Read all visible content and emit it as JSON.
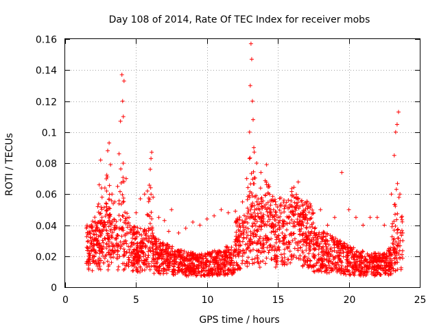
{
  "chart_data": {
    "type": "scatter",
    "title": "Day 108 of 2014, Rate Of TEC Index for receiver mobs",
    "xlabel": "GPS time / hours",
    "ylabel": "ROTI / TECUs",
    "xlim": [
      0,
      25
    ],
    "ylim": [
      0,
      0.16
    ],
    "xticks": [
      0,
      5,
      10,
      15,
      20,
      25
    ],
    "yticks": [
      0,
      0.02,
      0.04,
      0.06,
      0.08,
      0.1,
      0.12,
      0.14,
      0.16
    ],
    "xtick_labels": [
      "0",
      "5",
      "10",
      "15",
      "20",
      "25"
    ],
    "ytick_labels": [
      "0",
      "0.02",
      "0.04",
      "0.06",
      "0.08",
      "0.1",
      "0.12",
      "0.14",
      "0.16"
    ],
    "grid": true,
    "marker": "+",
    "color": "#ff0000",
    "series": [
      {
        "name": "ROTI",
        "envelope_note": "dense cloud of points between 1.5 h and 23.8 h",
        "points": [
          [
            1.5,
            0.038
          ],
          [
            1.6,
            0.025
          ],
          [
            1.7,
            0.018
          ],
          [
            2.0,
            0.036
          ],
          [
            2.3,
            0.052
          ],
          [
            2.4,
            0.066
          ],
          [
            2.5,
            0.082
          ],
          [
            2.6,
            0.058
          ],
          [
            2.8,
            0.064
          ],
          [
            3.0,
            0.088
          ],
          [
            3.1,
            0.093
          ],
          [
            3.2,
            0.079
          ],
          [
            3.3,
            0.06
          ],
          [
            3.5,
            0.055
          ],
          [
            3.7,
            0.065
          ],
          [
            3.8,
            0.086
          ],
          [
            3.9,
            0.107
          ],
          [
            4.0,
            0.137
          ],
          [
            4.05,
            0.12
          ],
          [
            4.1,
            0.11
          ],
          [
            4.15,
            0.133
          ],
          [
            4.3,
            0.07
          ],
          [
            4.5,
            0.045
          ],
          [
            5.0,
            0.048
          ],
          [
            5.3,
            0.057
          ],
          [
            5.6,
            0.06
          ],
          [
            5.8,
            0.062
          ],
          [
            6.0,
            0.076
          ],
          [
            6.05,
            0.083
          ],
          [
            6.1,
            0.087
          ],
          [
            6.2,
            0.058
          ],
          [
            6.6,
            0.045
          ],
          [
            7.0,
            0.043
          ],
          [
            7.3,
            0.036
          ],
          [
            7.5,
            0.05
          ],
          [
            8.0,
            0.035
          ],
          [
            8.5,
            0.038
          ],
          [
            9.0,
            0.042
          ],
          [
            9.5,
            0.04
          ],
          [
            10.0,
            0.044
          ],
          [
            10.5,
            0.046
          ],
          [
            11.0,
            0.05
          ],
          [
            11.5,
            0.048
          ],
          [
            12.0,
            0.049
          ],
          [
            12.5,
            0.055
          ],
          [
            12.8,
            0.07
          ],
          [
            13.0,
            0.1
          ],
          [
            13.05,
            0.13
          ],
          [
            13.1,
            0.157
          ],
          [
            13.15,
            0.147
          ],
          [
            13.2,
            0.12
          ],
          [
            13.25,
            0.108
          ],
          [
            13.3,
            0.09
          ],
          [
            13.5,
            0.08
          ],
          [
            13.8,
            0.074
          ],
          [
            14.2,
            0.079
          ],
          [
            14.5,
            0.05
          ],
          [
            15.0,
            0.045
          ],
          [
            15.5,
            0.052
          ],
          [
            16.0,
            0.052
          ],
          [
            16.3,
            0.054
          ],
          [
            16.8,
            0.048
          ],
          [
            17.5,
            0.048
          ],
          [
            18.0,
            0.05
          ],
          [
            18.5,
            0.04
          ],
          [
            19.0,
            0.045
          ],
          [
            19.5,
            0.074
          ],
          [
            20.0,
            0.05
          ],
          [
            20.5,
            0.045
          ],
          [
            21.0,
            0.04
          ],
          [
            21.5,
            0.045
          ],
          [
            22.0,
            0.045
          ],
          [
            22.5,
            0.04
          ],
          [
            23.0,
            0.06
          ],
          [
            23.2,
            0.085
          ],
          [
            23.3,
            0.1
          ],
          [
            23.4,
            0.105
          ],
          [
            23.5,
            0.113
          ],
          [
            23.6,
            0.06
          ],
          [
            23.7,
            0.045
          ],
          [
            23.8,
            0.03
          ]
        ]
      }
    ]
  }
}
